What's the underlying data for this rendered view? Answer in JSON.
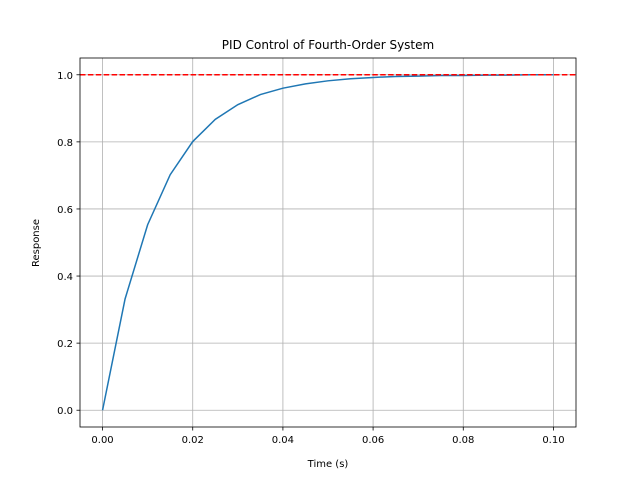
{
  "chart_data": {
    "type": "line",
    "title": "PID Control of Fourth-Order System",
    "xlabel": "Time (s)",
    "ylabel": "Response",
    "x": [
      0,
      0.005,
      0.01,
      0.015,
      0.02,
      0.025,
      0.03,
      0.035,
      0.04,
      0.045,
      0.05,
      0.055,
      0.06,
      0.065,
      0.07,
      0.075,
      0.08,
      0.085,
      0.09,
      0.095,
      0.1
    ],
    "series": [
      {
        "color": "#1f77b4",
        "values": [
          0,
          0.332,
          0.553,
          0.702,
          0.801,
          0.867,
          0.911,
          0.941,
          0.96,
          0.973,
          0.982,
          0.988,
          0.992,
          0.995,
          0.996,
          0.998,
          0.998,
          0.999,
          0.999,
          1.0,
          1.0
        ]
      }
    ],
    "reference_line": {
      "value": 1.0,
      "color": "#ff0000",
      "style": "dashed"
    },
    "xlim": [
      -0.005,
      0.105
    ],
    "ylim": [
      -0.05,
      1.05
    ],
    "xticks": [
      {
        "value": 0,
        "label": "0.00"
      },
      {
        "value": 0.02,
        "label": "0.02"
      },
      {
        "value": 0.04,
        "label": "0.04"
      },
      {
        "value": 0.06,
        "label": "0.06"
      },
      {
        "value": 0.08,
        "label": "0.08"
      },
      {
        "value": 0.1,
        "label": "0.10"
      }
    ],
    "yticks": [
      {
        "value": 0,
        "label": "0.0"
      },
      {
        "value": 0.2,
        "label": "0.2"
      },
      {
        "value": 0.4,
        "label": "0.4"
      },
      {
        "value": 0.6,
        "label": "0.6"
      },
      {
        "value": 0.8,
        "label": "0.8"
      },
      {
        "value": 1.0,
        "label": "1.0"
      }
    ],
    "grid": true
  }
}
